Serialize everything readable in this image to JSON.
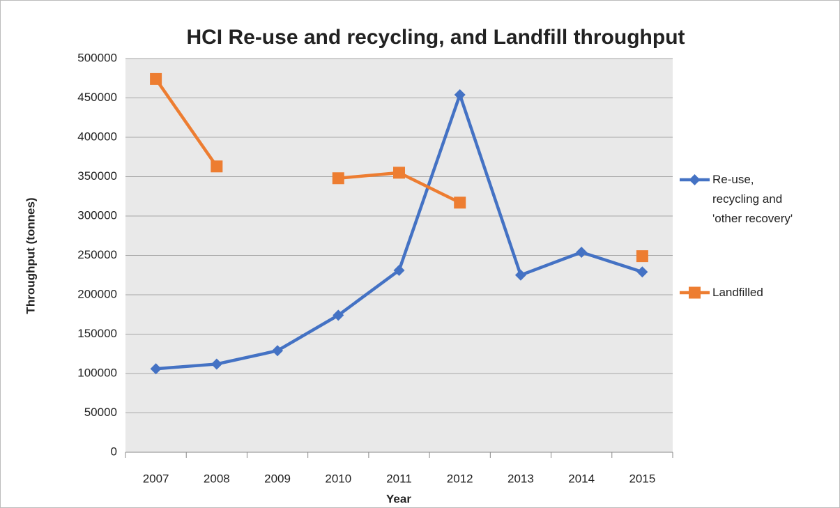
{
  "chart_data": {
    "type": "line",
    "title": "HCI Re-use and recycling, and Landfill throughput",
    "x_label": "Year",
    "y_label": "Throughput (tonnes)",
    "categories": [
      "2007",
      "2008",
      "2009",
      "2010",
      "2011",
      "2012",
      "2013",
      "2014",
      "2015"
    ],
    "series": [
      {
        "name": "Re-use, recycling and 'other recovery'",
        "color": "#4472c4",
        "marker": "diamond",
        "values": [
          106000,
          112000,
          129000,
          174000,
          231000,
          454000,
          225000,
          254000,
          229000
        ]
      },
      {
        "name": "Landfilled",
        "color": "#ed7d31",
        "marker": "square",
        "values": [
          474000,
          363000,
          null,
          348000,
          355000,
          317000,
          null,
          null,
          249000
        ]
      }
    ],
    "ylim": [
      0,
      500000
    ],
    "yticks": [
      0,
      50000,
      100000,
      150000,
      200000,
      250000,
      300000,
      350000,
      400000,
      450000,
      500000
    ],
    "grid": true,
    "legend": "right"
  }
}
